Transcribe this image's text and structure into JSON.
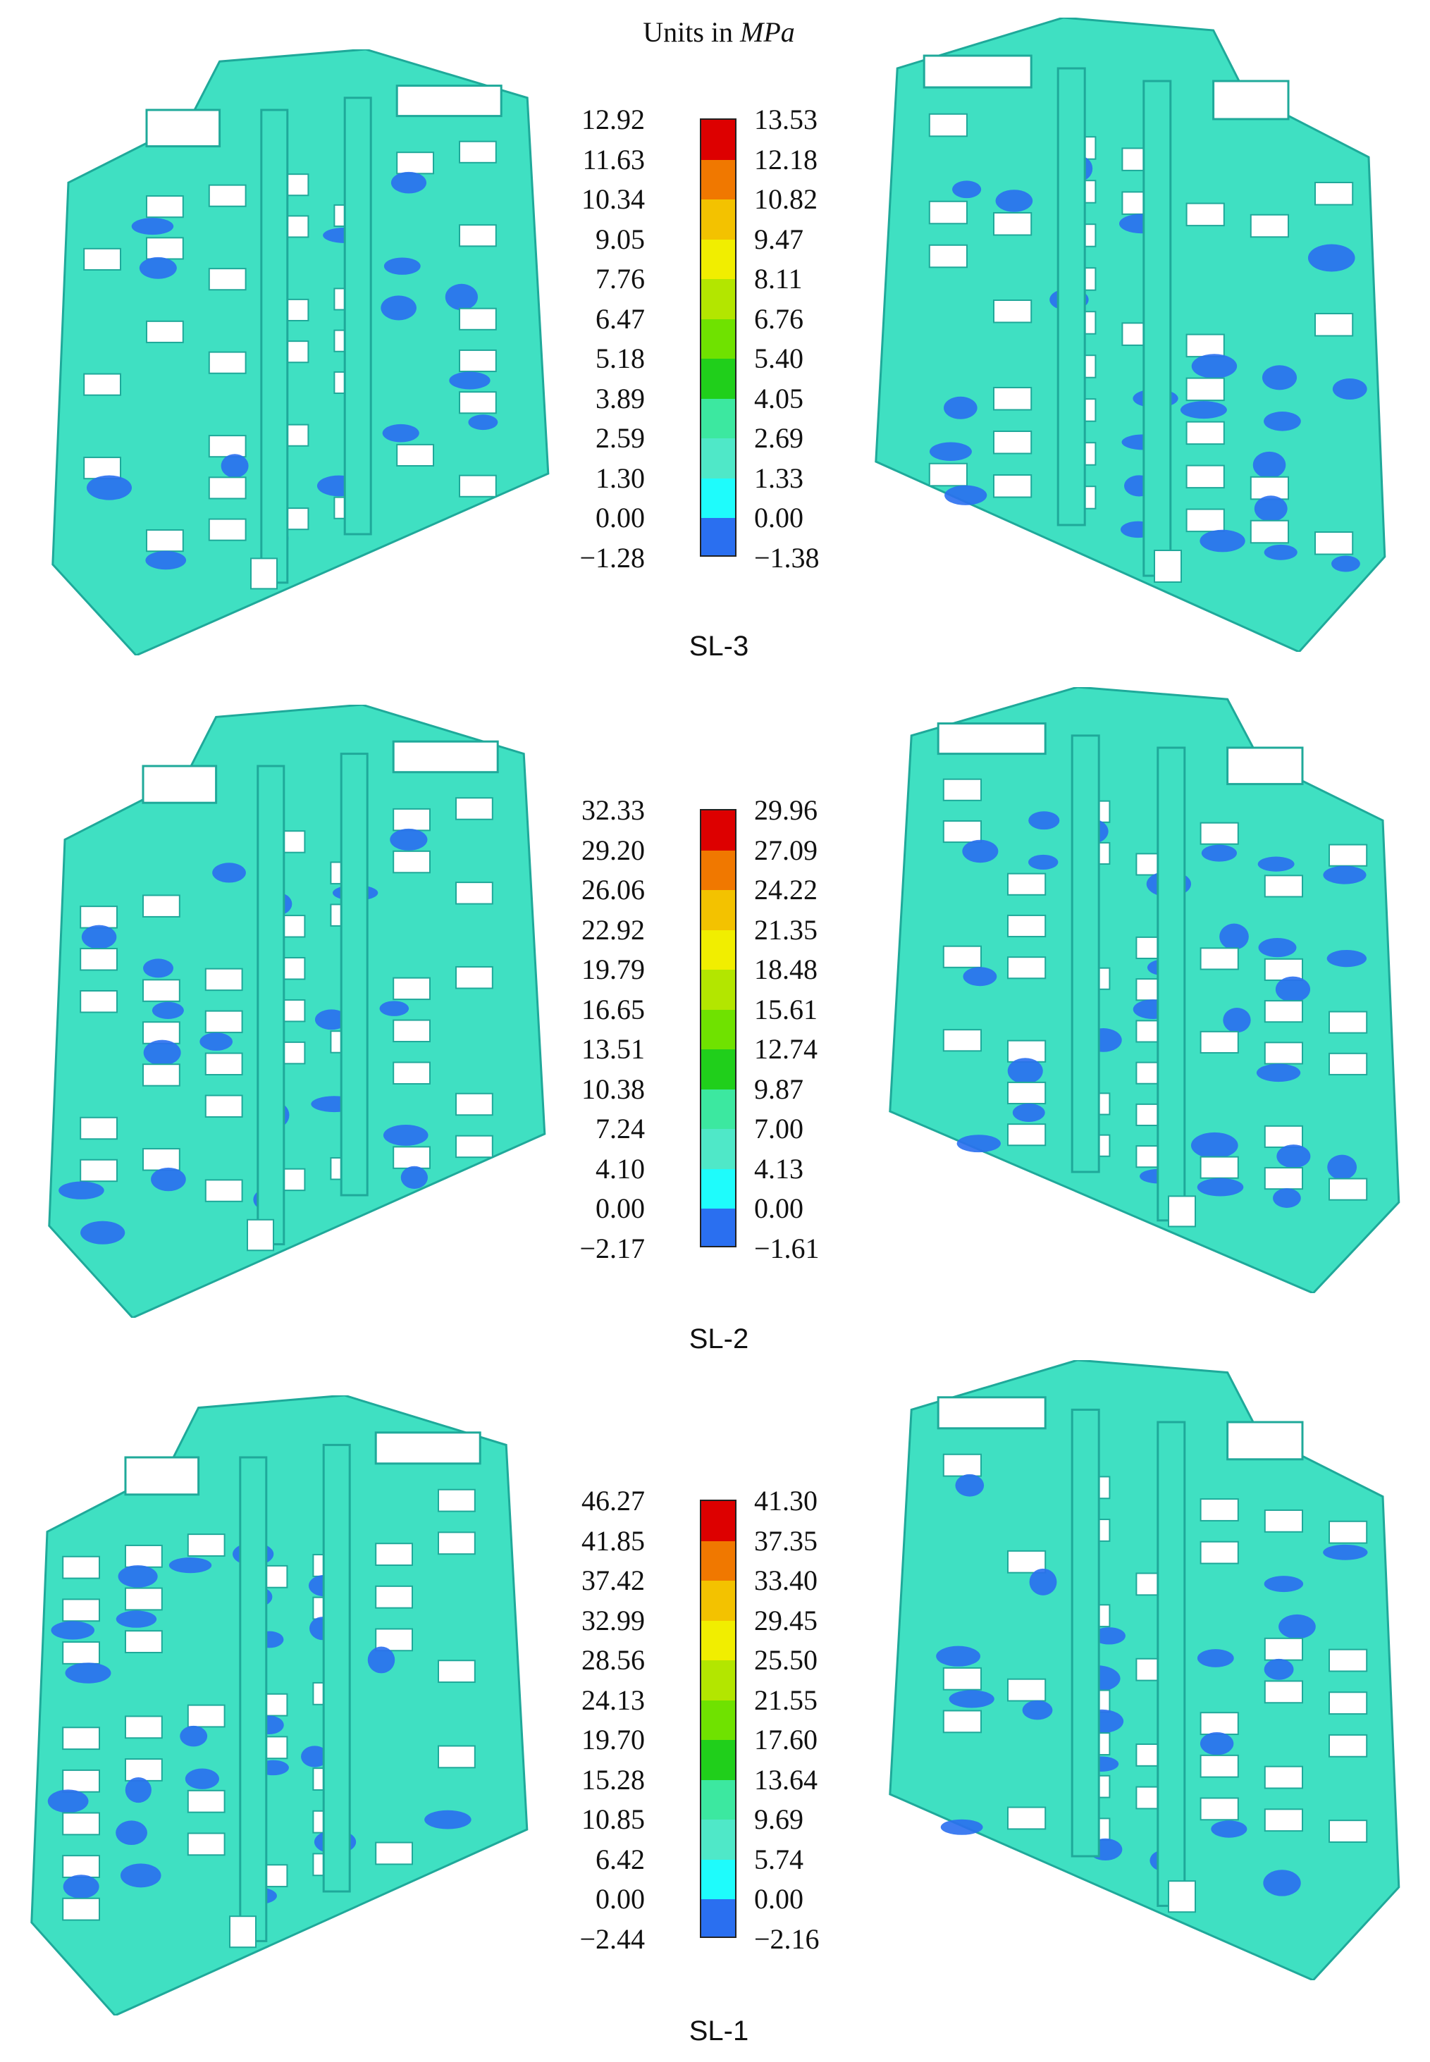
{
  "header": {
    "units_prefix": "Units in ",
    "units_unit": "MPa"
  },
  "palette": [
    "#dd0000",
    "#f07800",
    "#f3c200",
    "#f1ee00",
    "#b3e600",
    "#6fe200",
    "#20cf1b",
    "#3ce8a0",
    "#4fe8c8",
    "#1efcfc",
    "#2a6ff0"
  ],
  "panels": [
    {
      "label": "SL-3",
      "left_ticks": [
        "12.92",
        "11.63",
        "10.34",
        "9.05",
        "7.76",
        "6.47",
        "5.18",
        "3.89",
        "2.59",
        "1.30",
        "0.00",
        "−1.28"
      ],
      "right_ticks": [
        "13.53",
        "12.18",
        "10.82",
        "9.47",
        "8.11",
        "6.76",
        "5.40",
        "4.05",
        "2.69",
        "1.33",
        "0.00",
        "−1.38"
      ]
    },
    {
      "label": "SL-2",
      "left_ticks": [
        "32.33",
        "29.20",
        "26.06",
        "22.92",
        "19.79",
        "16.65",
        "13.51",
        "10.38",
        "7.24",
        "4.10",
        "0.00",
        "−2.17"
      ],
      "right_ticks": [
        "29.96",
        "27.09",
        "24.22",
        "21.35",
        "18.48",
        "15.61",
        "12.74",
        "9.87",
        "7.00",
        "4.13",
        "0.00",
        "−1.61"
      ]
    },
    {
      "label": "SL-1",
      "left_ticks": [
        "46.27",
        "41.85",
        "37.42",
        "32.99",
        "28.56",
        "24.13",
        "19.70",
        "15.28",
        "10.85",
        "6.42",
        "0.00",
        "−2.44"
      ],
      "right_ticks": [
        "41.30",
        "37.35",
        "33.40",
        "29.45",
        "25.50",
        "21.55",
        "17.60",
        "13.64",
        "9.69",
        "5.74",
        "0.00",
        "−2.16"
      ]
    }
  ]
}
